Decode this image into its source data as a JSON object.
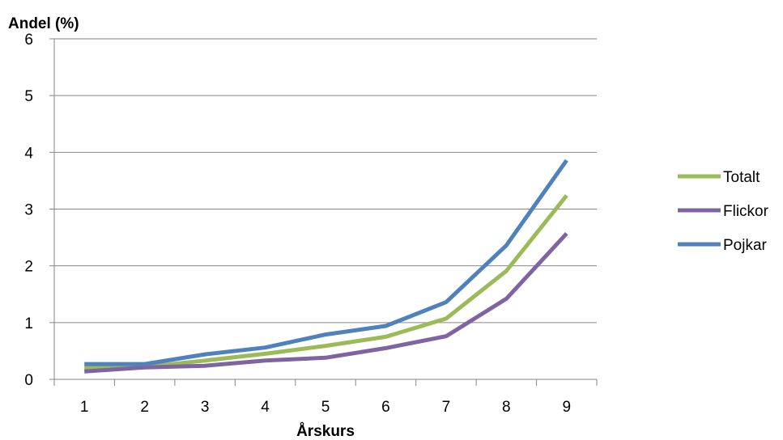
{
  "chart_data": {
    "type": "line",
    "ylabel": "Andel (%)",
    "xlabel": "Årskurs",
    "categories": [
      "1",
      "2",
      "3",
      "4",
      "5",
      "6",
      "7",
      "8",
      "9"
    ],
    "ylim": [
      0,
      6
    ],
    "yticks": [
      "0",
      "1",
      "2",
      "3",
      "4",
      "5",
      "6"
    ],
    "grid": true,
    "legend_position": "right",
    "series": [
      {
        "name": "Totalt",
        "color": "#9BBB59",
        "values": [
          0.2,
          0.22,
          0.33,
          0.45,
          0.59,
          0.75,
          1.07,
          1.91,
          3.24
        ]
      },
      {
        "name": "Flickor",
        "color": "#8064A2",
        "values": [
          0.14,
          0.21,
          0.24,
          0.33,
          0.38,
          0.55,
          0.76,
          1.42,
          2.57
        ]
      },
      {
        "name": "Pojkar",
        "color": "#4F81BD",
        "values": [
          0.27,
          0.27,
          0.44,
          0.56,
          0.79,
          0.94,
          1.36,
          2.36,
          3.86
        ]
      }
    ]
  }
}
